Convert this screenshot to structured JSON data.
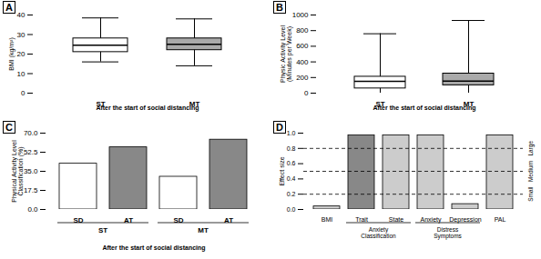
{
  "chart_data": [
    {
      "type": "box",
      "title": "A",
      "ylabel": "BMI (kg/m²)",
      "xlabel": "After the start of social distancing",
      "categories": [
        "ST",
        "MT"
      ],
      "boxes": [
        {
          "whisker_low": 16,
          "q1": 21,
          "median": 24.5,
          "q3": 28,
          "whisker_high": 38.5
        },
        {
          "whisker_low": 14,
          "q1": 22,
          "median": 25,
          "q3": 28,
          "whisker_high": 38
        }
      ],
      "colors": [
        "white",
        "#aaaaaa"
      ],
      "ylim": [
        0,
        40
      ],
      "yticks": [
        0,
        10,
        20,
        30,
        40
      ]
    },
    {
      "type": "box",
      "title": "B",
      "ylabel": "Physic Activity Level\n(Minutes per Week)",
      "xlabel": "After the start of social distancing",
      "categories": [
        "ST",
        "MT"
      ],
      "boxes": [
        {
          "whisker_low": 0,
          "q1": 60,
          "median": 150,
          "q3": 210,
          "whisker_high": 760
        },
        {
          "whisker_low": 0,
          "q1": 100,
          "median": 155,
          "q3": 250,
          "whisker_high": 930
        }
      ],
      "colors": [
        "white",
        "#aaaaaa"
      ],
      "ylim": [
        0,
        1000
      ],
      "yticks": [
        0,
        200,
        400,
        600,
        800,
        1000
      ]
    },
    {
      "type": "bar",
      "title": "C",
      "ylabel": "Physical Activity Level\nClassification (%)",
      "xlabel": "After the start of social distancing",
      "categories": [
        "SD",
        "AT",
        "SD",
        "AT"
      ],
      "groups": [
        "ST",
        "ST",
        "MT",
        "MT"
      ],
      "values": [
        42,
        57,
        30,
        64
      ],
      "colors": [
        "white",
        "#888888",
        "white",
        "#888888"
      ],
      "ylim": [
        0,
        70
      ],
      "yticks": [
        {
          "value": 0,
          "label": "0.0"
        },
        17.5,
        {
          "value": 35,
          "label": "35.0"
        },
        52.5,
        {
          "value": 70,
          "label": "70.0"
        }
      ]
    },
    {
      "type": "bar",
      "title": "D",
      "ylabel": "Effect size",
      "categories": [
        "BMI",
        "Trait",
        "State",
        "Anxiety",
        "Depression",
        "PAL"
      ],
      "groups": [
        null,
        "Anxiety\nClassification",
        "Anxiety\nClassification",
        "Distress\nSymptoms",
        "Distress\nSymptoms",
        null
      ],
      "values": [
        0.04,
        0.97,
        0.97,
        0.97,
        0.07,
        0.97
      ],
      "colors": [
        "#cccccc",
        "#888888",
        "#cccccc",
        "#cccccc",
        "#cccccc",
        "#cccccc"
      ],
      "reference_lines": [
        {
          "value": 0.2,
          "label": "Small"
        },
        {
          "value": 0.5,
          "label": "Medium"
        },
        {
          "value": 0.8,
          "label": "Large"
        }
      ],
      "ylim": [
        0,
        1
      ],
      "yticks": [
        {
          "value": 0,
          "label": "0.0"
        },
        0.2,
        0.4,
        0.6,
        0.8,
        {
          "value": 1,
          "label": "1.0"
        }
      ]
    }
  ]
}
